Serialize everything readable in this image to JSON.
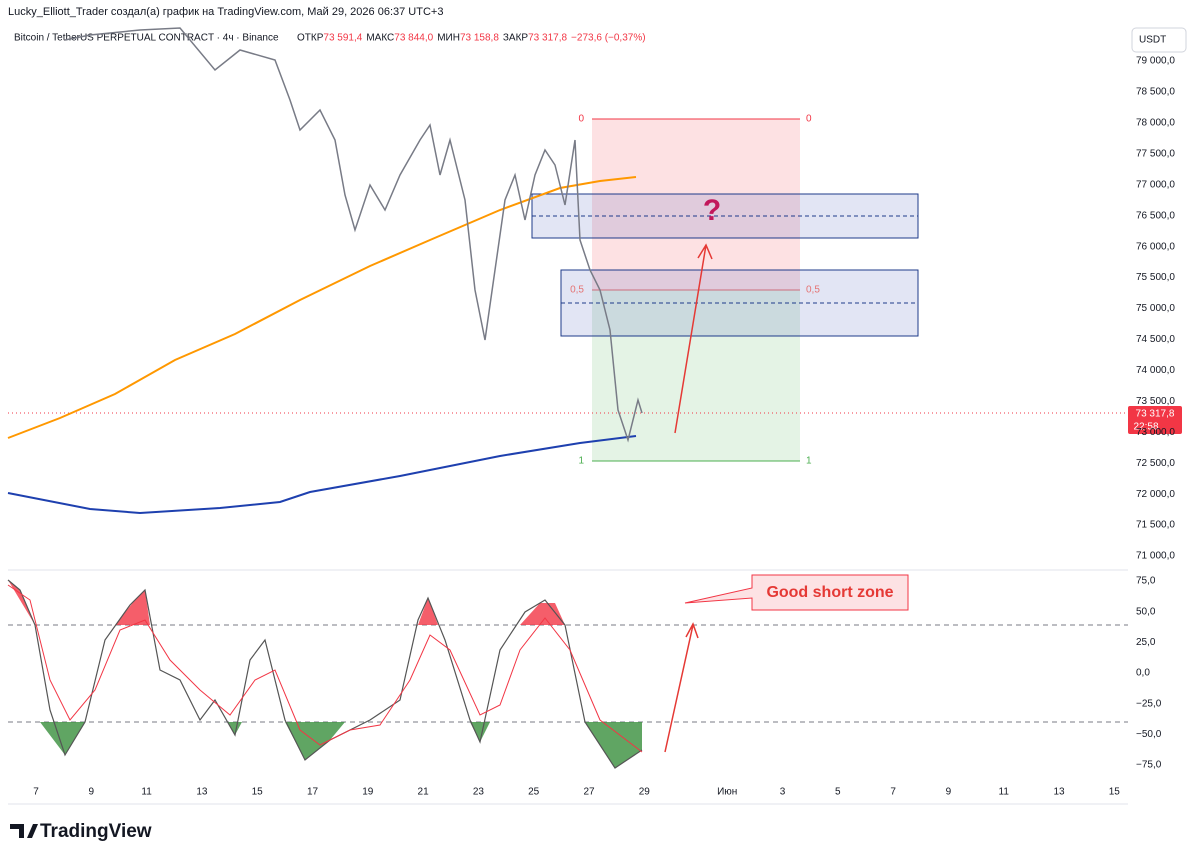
{
  "header": {
    "author": "Lucky_Elliott_Trader создал(а) график на TradingView.com, Май 29, 2026 06:37 UTC+3",
    "symbol": "Bitcoin / TetherUS PERPETUAL CONTRACT · 4ч · Binance",
    "ohlc": [
      {
        "label": "ОТКР",
        "value": "73 591,4"
      },
      {
        "label": "МАКС",
        "value": "73 844,0"
      },
      {
        "label": "МИН",
        "value": "73 158,8"
      },
      {
        "label": "ЗАКР",
        "value": "73 317,8"
      }
    ],
    "change": "−273,6 (−0,37%)"
  },
  "currency": "USDT",
  "price_axis": [
    "79 000,0",
    "78 500,0",
    "78 000,0",
    "77 500,0",
    "77 000,0",
    "76 500,0",
    "76 000,0",
    "75 500,0",
    "75 000,0",
    "74 500,0",
    "74 000,0",
    "73 500,0",
    "73 000,0",
    "72 500,0",
    "72 000,0",
    "71 500,0",
    "71 000,0"
  ],
  "last_price": {
    "price": "73 317,8",
    "countdown": "22:58"
  },
  "oscillator_axis": [
    "75,0",
    "50,0",
    "25,0",
    "0,0",
    "−25,0",
    "−50,0",
    "−75,0"
  ],
  "time_axis": [
    "7",
    "9",
    "11",
    "13",
    "15",
    "17",
    "19",
    "21",
    "23",
    "25",
    "27",
    "29",
    "Июн",
    "3",
    "5",
    "7",
    "9",
    "11",
    "13",
    "15"
  ],
  "fib_levels": [
    "0",
    "0,5",
    "1"
  ],
  "annotations": {
    "question": "?",
    "short_zone": "Good short zone"
  },
  "logo": "TradingView"
}
